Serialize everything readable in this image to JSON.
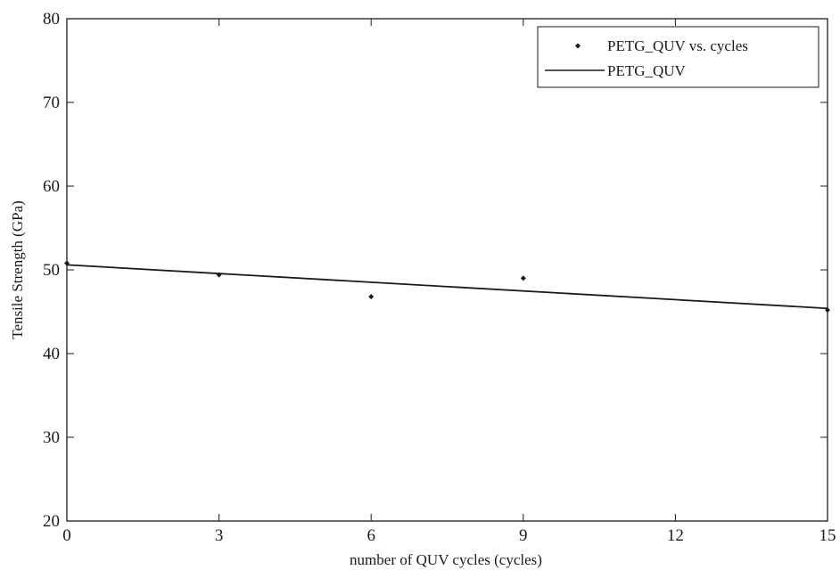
{
  "chart_data": {
    "type": "scatter",
    "xlabel": "number of QUV cycles (cycles)",
    "ylabel": "Tensile Strength (GPa)",
    "xlim": [
      0,
      15
    ],
    "ylim": [
      20,
      80
    ],
    "x_ticks": [
      0,
      3,
      6,
      9,
      12,
      15
    ],
    "y_ticks": [
      20,
      30,
      40,
      50,
      60,
      70,
      80
    ],
    "grid": false,
    "legend_position": "top-right",
    "series": [
      {
        "name": "PETG_QUV vs. cycles",
        "kind": "points",
        "x": [
          0,
          3,
          6,
          9,
          15
        ],
        "y": [
          50.8,
          49.4,
          46.8,
          49.0,
          45.2
        ]
      },
      {
        "name": "PETG_QUV",
        "kind": "fit-line",
        "x": [
          0,
          15
        ],
        "y": [
          50.6,
          45.4
        ]
      }
    ],
    "colors": {
      "points": "#1a1a1a",
      "line": "#1a1a1a",
      "axes": "#1a1a1a"
    }
  }
}
